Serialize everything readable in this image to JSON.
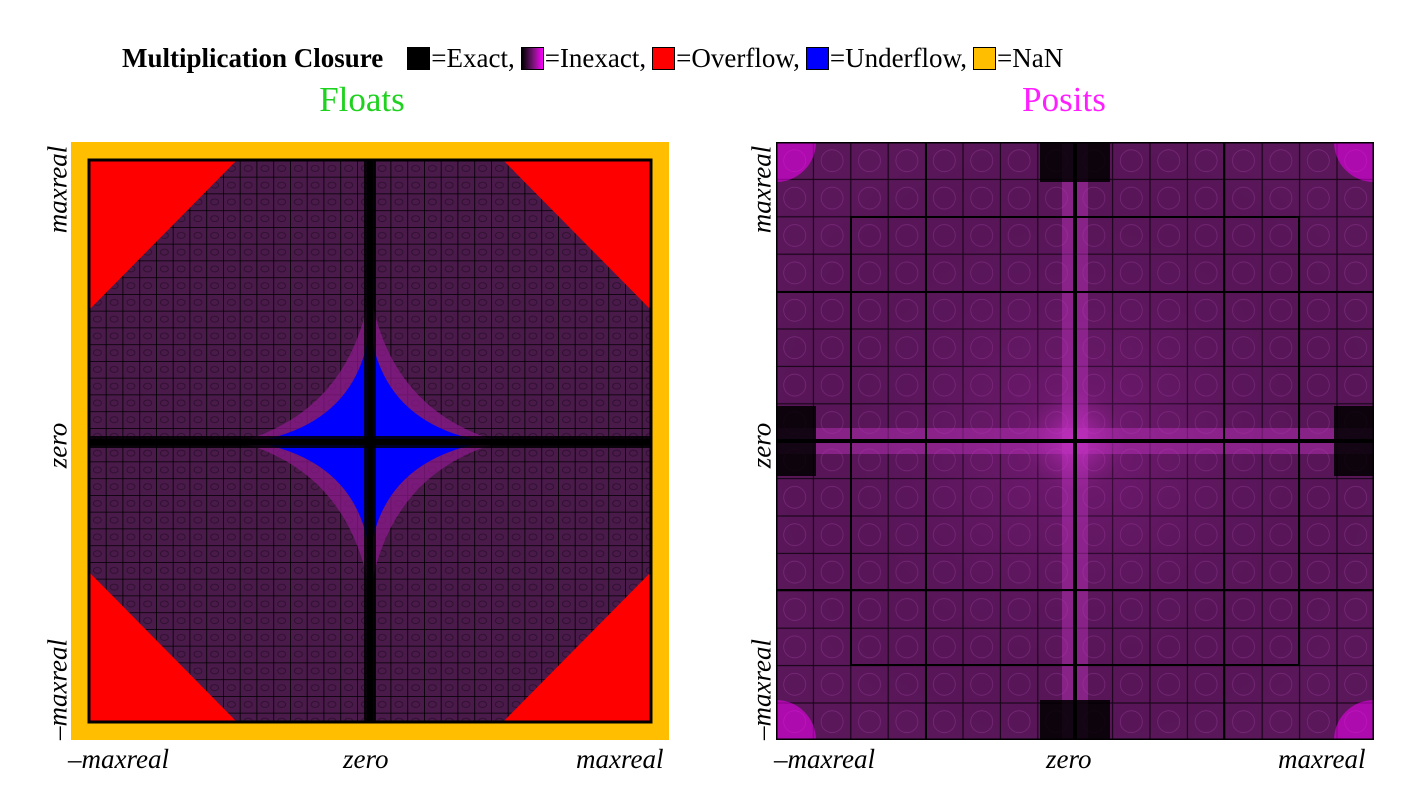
{
  "legend": {
    "title": "Multiplication Closure",
    "items": [
      {
        "label": "=Exact,",
        "color": "#000000",
        "icon": "swatch-black"
      },
      {
        "label": "=Inexact,",
        "color": "#ff00ff",
        "icon": "swatch-gradient-black-magenta"
      },
      {
        "label": "=Overflow,",
        "color": "#ff0000",
        "icon": "swatch-red"
      },
      {
        "label": "=Underflow,",
        "color": "#0000ff",
        "icon": "swatch-blue"
      },
      {
        "label": "=NaN",
        "color": "#ffbf00",
        "icon": "swatch-orange"
      }
    ]
  },
  "chart_data": [
    {
      "type": "heatmap",
      "title": "Floats",
      "title_color": "#1fd21f",
      "x_ticks": [
        "–maxreal",
        "zero",
        "maxreal"
      ],
      "y_ticks": [
        "–maxreal",
        "zero",
        "maxreal"
      ],
      "regions": [
        "Exact",
        "Inexact",
        "Overflow",
        "Underflow",
        "NaN"
      ],
      "colors": {
        "Exact": "#000000",
        "Inexact": "#4a1a4a",
        "Overflow": "#ff0000",
        "Underflow": "#0000ff",
        "NaN": "#ffbf00"
      }
    },
    {
      "type": "heatmap",
      "title": "Posits",
      "title_color": "#ff1eff",
      "x_ticks": [
        "–maxreal",
        "zero",
        "maxreal"
      ],
      "y_ticks": [
        "–maxreal",
        "zero",
        "maxreal"
      ],
      "regions": [
        "Exact",
        "Inexact"
      ],
      "colors": {
        "Exact": "#000000",
        "Inexact": "#ff00ff"
      }
    }
  ]
}
